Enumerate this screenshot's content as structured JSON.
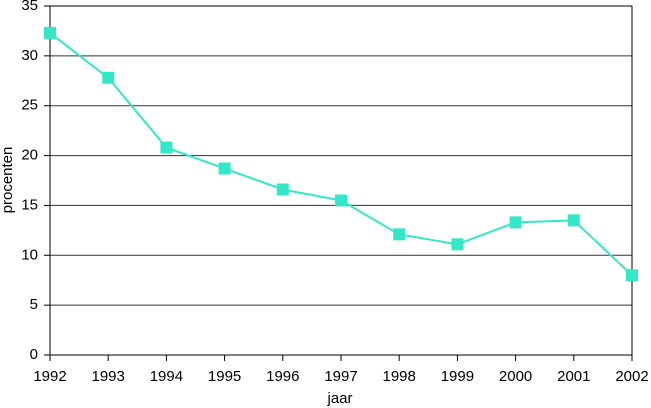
{
  "chart_data": {
    "type": "line",
    "x": [
      1992,
      1993,
      1994,
      1995,
      1996,
      1997,
      1998,
      1999,
      2000,
      2001,
      2002
    ],
    "values": [
      32.3,
      27.8,
      20.8,
      18.7,
      16.6,
      15.5,
      12.1,
      11.1,
      13.3,
      13.5,
      8.0
    ],
    "color": "#33e8c8",
    "x_label": "jaar",
    "y_label": "procenten",
    "xlim": [
      1992,
      2002
    ],
    "xticks": [
      1992,
      1993,
      1994,
      1995,
      1996,
      1997,
      1998,
      1999,
      2000,
      2001,
      2002
    ],
    "ylim": [
      0,
      35
    ],
    "yticks": [
      0,
      5,
      10,
      15,
      20,
      25,
      30,
      35
    ],
    "grid": true
  }
}
